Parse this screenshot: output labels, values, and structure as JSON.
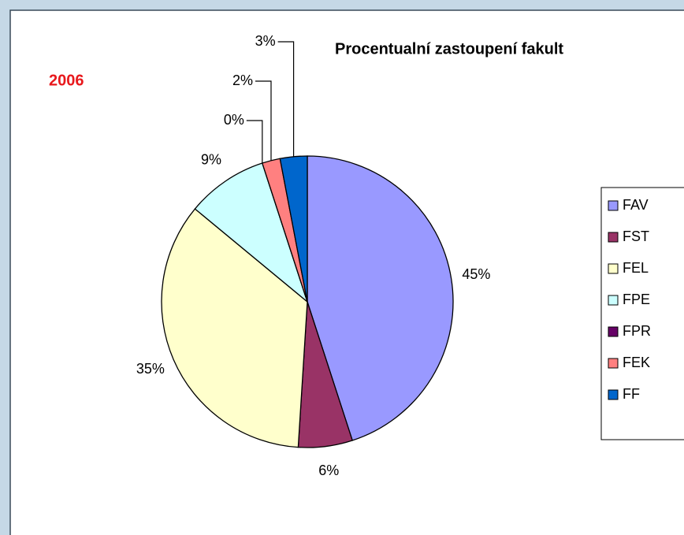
{
  "chart_data": {
    "type": "pie",
    "title": "Procentualní zastoupení fakult",
    "subtitle": "2006",
    "categories": [
      "FAV",
      "FST",
      "FEL",
      "FPE",
      "FPR",
      "FEK",
      "FF"
    ],
    "values": [
      45,
      6,
      35,
      9,
      0,
      2,
      3
    ],
    "value_labels": [
      "45%",
      "6%",
      "35%",
      "9%",
      "0%",
      "2%",
      "3%"
    ],
    "colors": [
      "#9999ff",
      "#993366",
      "#ffffcc",
      "#ccffff",
      "#660066",
      "#ff8080",
      "#0066cc"
    ],
    "legend": "right"
  }
}
